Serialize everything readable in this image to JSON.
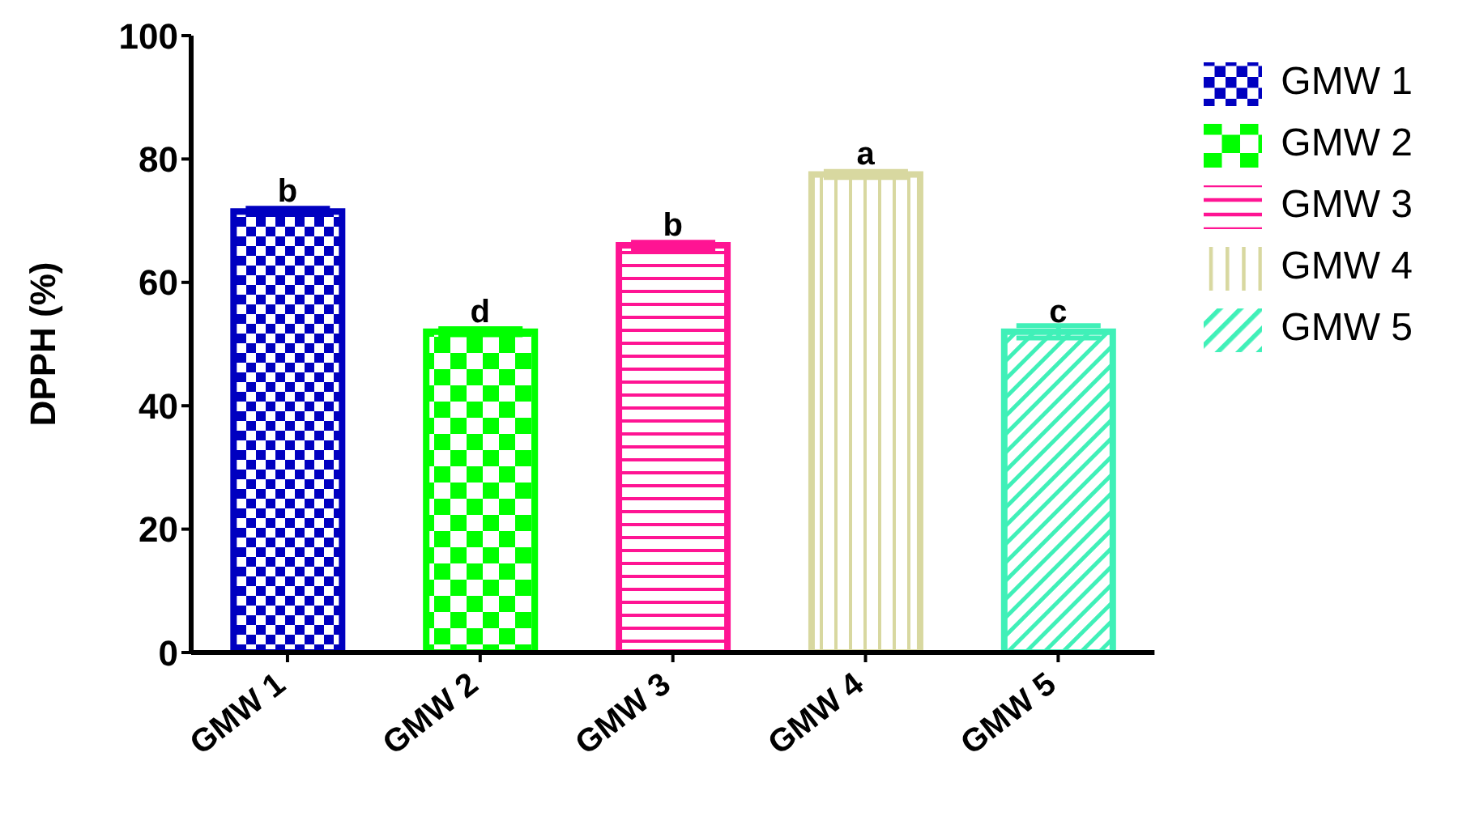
{
  "chart_data": {
    "type": "bar",
    "ylabel": "DPPH (%)",
    "categories": [
      "GMW 1",
      "GMW 2",
      "GMW 3",
      "GMW 4",
      "GMW 5"
    ],
    "series": [
      {
        "name": "GMW 1",
        "color": "#0000c0",
        "values": [
          71.5,
          null,
          null,
          null,
          null
        ],
        "errors": [
          0.5,
          null,
          null,
          null,
          null
        ]
      },
      {
        "name": "GMW 2",
        "color": "#00ff00",
        "values": [
          null,
          52,
          null,
          null,
          null
        ],
        "errors": [
          null,
          0.5,
          null,
          null,
          null
        ]
      },
      {
        "name": "GMW 3",
        "color": "#ff1493",
        "values": [
          null,
          null,
          66,
          null,
          null
        ],
        "errors": [
          null,
          null,
          0.5,
          null,
          null
        ]
      },
      {
        "name": "GMW 4",
        "color": "#d8d8a0",
        "values": [
          null,
          null,
          null,
          77.5,
          null
        ],
        "errors": [
          null,
          null,
          null,
          0.5,
          null
        ]
      },
      {
        "name": "GMW 5",
        "color": "#40f0b8",
        "values": [
          null,
          null,
          null,
          null,
          52
        ],
        "errors": [
          null,
          null,
          null,
          null,
          1
        ]
      }
    ],
    "stacked": true,
    "ylim": [
      0,
      100
    ],
    "yticks": [
      0,
      20,
      40,
      60,
      80,
      100
    ],
    "grid": false,
    "legend": "right",
    "annotations": [
      {
        "text": "b",
        "x": "GMW 1",
        "y": 71.5
      },
      {
        "text": "d",
        "x": "GMW 2",
        "y": 52
      },
      {
        "text": "b",
        "x": "GMW 3",
        "y": 66
      },
      {
        "text": "a",
        "x": "GMW 4",
        "y": 77.5
      },
      {
        "text": "c",
        "x": "GMW 5",
        "y": 52
      }
    ]
  }
}
